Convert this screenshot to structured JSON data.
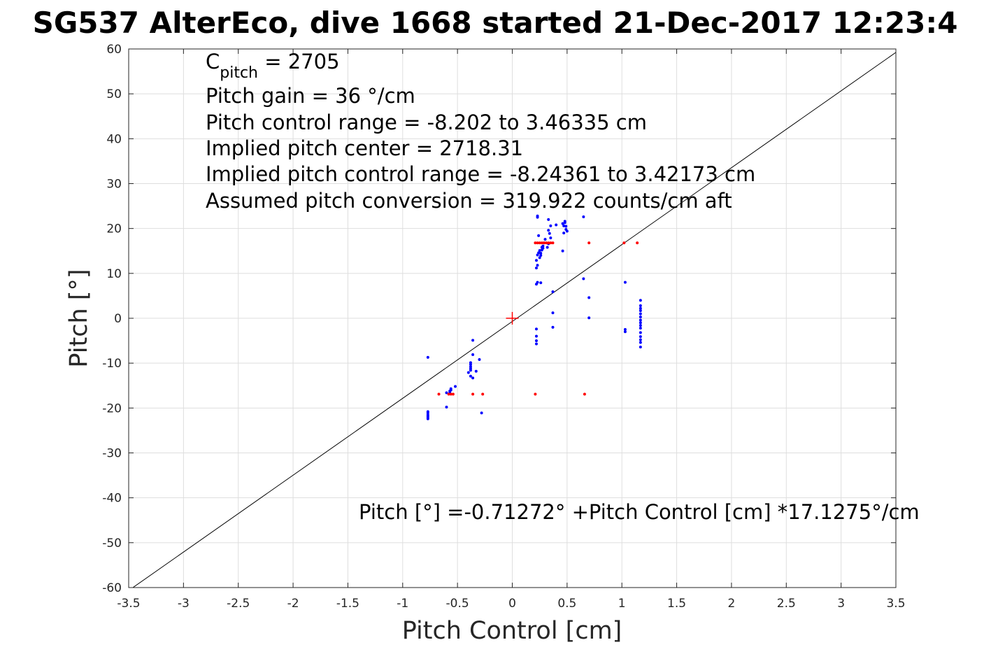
{
  "chart_data": {
    "type": "scatter",
    "title": "SG537 AlterEco, dive 1668 started 21-Dec-2017 12:23:4",
    "xlabel": "Pitch Control [cm]",
    "ylabel": "Pitch [°]",
    "xlim": [
      -3.5,
      3.5
    ],
    "ylim": [
      -60,
      60
    ],
    "xticks": [
      -3.5,
      -3,
      -2.5,
      -2,
      -1.5,
      -1,
      -0.5,
      0,
      0.5,
      1,
      1.5,
      2,
      2.5,
      3,
      3.5
    ],
    "yticks": [
      -60,
      -50,
      -40,
      -30,
      -20,
      -10,
      0,
      10,
      20,
      30,
      40,
      50,
      60
    ],
    "xtick_labels": [
      "-3.5",
      "-3",
      "-2.5",
      "-2",
      "-1.5",
      "-1",
      "-0.5",
      "0",
      "0.5",
      "1",
      "1.5",
      "2",
      "2.5",
      "3",
      "3.5"
    ],
    "ytick_labels": [
      "-60",
      "-50",
      "-40",
      "-30",
      "-20",
      "-10",
      "0",
      "10",
      "20",
      "30",
      "40",
      "50",
      "60"
    ],
    "grid": true,
    "annotations": {
      "c_pitch_main": "C",
      "c_pitch_sub": "pitch",
      "c_pitch_value": " = 2705",
      "lines": [
        "Pitch gain = 36 °/cm",
        "Pitch control range = -8.202 to 3.46335 cm",
        "Implied pitch center = 2718.31",
        "Implied pitch control range = -8.24361 to 3.42173 cm",
        "Assumed pitch conversion = 319.922 counts/cm aft"
      ],
      "fit_equation": "Pitch [°] =-0.71272° +Pitch Control [cm] *17.1275°/cm"
    },
    "fit_line": {
      "intercept": -0.71272,
      "slope": 17.1275,
      "color": "#000000"
    },
    "center_marker": {
      "x": 0,
      "y": 0,
      "color": "#ff0000"
    },
    "series": [
      {
        "color": "#0000ff",
        "points": [
          [
            -0.77,
            -8.7
          ],
          [
            -0.77,
            -20.8
          ],
          [
            -0.77,
            -21.1
          ],
          [
            -0.77,
            -21.5
          ],
          [
            -0.77,
            -21.8
          ],
          [
            -0.77,
            -22.1
          ],
          [
            -0.77,
            -22.4
          ],
          [
            -0.6,
            -19.8
          ],
          [
            -0.6,
            -16.6
          ],
          [
            -0.57,
            -16.2
          ],
          [
            -0.57,
            -16.6
          ],
          [
            -0.56,
            -15.7
          ],
          [
            -0.56,
            -16.0
          ],
          [
            -0.52,
            -15.2
          ],
          [
            -0.4,
            -12.1
          ],
          [
            -0.38,
            -9.9
          ],
          [
            -0.38,
            -10.3
          ],
          [
            -0.38,
            -10.8
          ],
          [
            -0.38,
            -11.2
          ],
          [
            -0.38,
            -11.6
          ],
          [
            -0.38,
            -12.9
          ],
          [
            -0.36,
            -4.9
          ],
          [
            -0.36,
            -8.1
          ],
          [
            -0.36,
            -13.3
          ],
          [
            -0.33,
            -11.8
          ],
          [
            -0.3,
            -9.2
          ],
          [
            -0.28,
            -21.1
          ],
          [
            0.22,
            -2.4
          ],
          [
            0.22,
            -4.0
          ],
          [
            0.22,
            -5.0
          ],
          [
            0.22,
            -5.7
          ],
          [
            0.22,
            7.6
          ],
          [
            0.23,
            8.0
          ],
          [
            0.26,
            7.9
          ],
          [
            0.22,
            11.2
          ],
          [
            0.23,
            11.8
          ],
          [
            0.22,
            12.9
          ],
          [
            0.23,
            14.1
          ],
          [
            0.24,
            14.6
          ],
          [
            0.25,
            15.1
          ],
          [
            0.25,
            13.5
          ],
          [
            0.26,
            14.0
          ],
          [
            0.26,
            14.5
          ],
          [
            0.27,
            15.2
          ],
          [
            0.27,
            15.8
          ],
          [
            0.28,
            16.1
          ],
          [
            0.28,
            15.6
          ],
          [
            0.29,
            16.8
          ],
          [
            0.3,
            17.6
          ],
          [
            0.32,
            15.8
          ],
          [
            0.33,
            16.6
          ],
          [
            0.34,
            18.9
          ],
          [
            0.35,
            17.9
          ],
          [
            0.33,
            19.6
          ],
          [
            0.33,
            22.0
          ],
          [
            0.35,
            20.6
          ],
          [
            0.4,
            20.8
          ],
          [
            0.24,
            18.4
          ],
          [
            0.23,
            22.8
          ],
          [
            0.23,
            22.5
          ],
          [
            0.46,
            21.1
          ],
          [
            0.47,
            20.6
          ],
          [
            0.48,
            21.3
          ],
          [
            0.49,
            19.8
          ],
          [
            0.48,
            21.6
          ],
          [
            0.49,
            20.5
          ],
          [
            0.5,
            19.4
          ],
          [
            0.47,
            19.0
          ],
          [
            0.46,
            15.0
          ],
          [
            0.65,
            22.6
          ],
          [
            0.65,
            8.8
          ],
          [
            0.7,
            4.6
          ],
          [
            0.7,
            0.1
          ],
          [
            0.37,
            5.9
          ],
          [
            0.37,
            1.2
          ],
          [
            0.37,
            -2.0
          ],
          [
            1.03,
            8.0
          ],
          [
            1.03,
            -2.5
          ],
          [
            1.03,
            -3.0
          ],
          [
            1.17,
            4.0
          ],
          [
            1.17,
            2.8
          ],
          [
            1.17,
            2.2
          ],
          [
            1.17,
            1.7
          ],
          [
            1.17,
            1.0
          ],
          [
            1.17,
            0.3
          ],
          [
            1.17,
            -0.4
          ],
          [
            1.17,
            -1.0
          ],
          [
            1.17,
            -1.6
          ],
          [
            1.17,
            -2.2
          ],
          [
            1.17,
            -3.2
          ],
          [
            1.17,
            -4.1
          ],
          [
            1.17,
            -4.8
          ],
          [
            1.17,
            -5.4
          ],
          [
            1.17,
            -6.4
          ]
        ]
      },
      {
        "color": "#ff0000",
        "points": [
          [
            -0.67,
            -16.9
          ],
          [
            -0.58,
            -16.9
          ],
          [
            -0.56,
            -16.9
          ],
          [
            -0.54,
            -16.9
          ],
          [
            -0.36,
            -16.9
          ],
          [
            -0.27,
            -16.9
          ],
          [
            0.21,
            -16.9
          ],
          [
            0.66,
            -16.9
          ],
          [
            0.21,
            16.8
          ],
          [
            0.23,
            16.8
          ],
          [
            0.25,
            16.8
          ],
          [
            0.27,
            16.8
          ],
          [
            0.29,
            16.8
          ],
          [
            0.31,
            16.8
          ],
          [
            0.33,
            16.8
          ],
          [
            0.35,
            16.8
          ],
          [
            0.37,
            16.8
          ],
          [
            0.7,
            16.8
          ],
          [
            1.02,
            16.8
          ],
          [
            1.14,
            16.8
          ]
        ]
      }
    ]
  }
}
